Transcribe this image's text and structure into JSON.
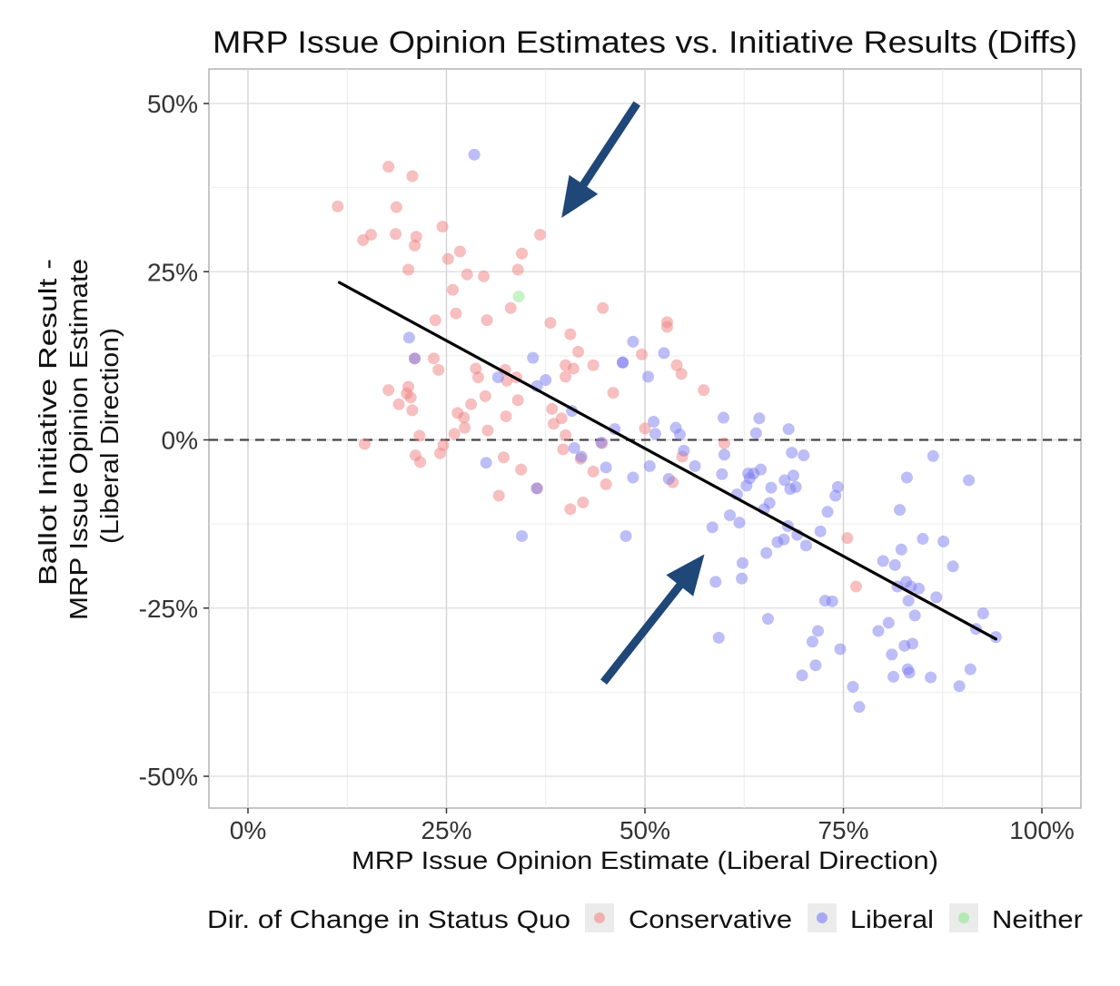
{
  "chart_data": {
    "type": "scatter",
    "title": "MRP Issue Opinion Estimates vs. Initiative Results (Diffs)",
    "xlabel": "MRP Issue Opinion Estimate (Liberal Direction)",
    "ylabel": [
      "Ballot Initiative Result -",
      "MRP Issue Opinion Estimate",
      "(Liberal Direction)"
    ],
    "xlim": [
      -0.09,
      1.1
    ],
    "ylim": [
      -0.55,
      0.55
    ],
    "x_ticks": [
      0,
      0.25,
      0.5,
      0.75,
      1.0
    ],
    "x_tick_labels": [
      "0%",
      "25%",
      "50%",
      "75%",
      "100%"
    ],
    "y_ticks": [
      0.5,
      0.25,
      0,
      -0.25,
      -0.5
    ],
    "y_tick_labels": [
      "50%",
      "25%",
      "0%",
      "-25%",
      "-50%"
    ],
    "grid": true,
    "reference_line": {
      "y": 0,
      "style": "dashed"
    },
    "trend_line": {
      "x": [
        0.115,
        0.942
      ],
      "y": [
        0.234,
        -0.296
      ]
    },
    "annotations": [
      {
        "type": "arrow",
        "from": [
          0.49,
          0.5
        ],
        "to": [
          0.395,
          0.33
        ],
        "color": "#1f4778"
      },
      {
        "type": "arrow",
        "from": [
          0.448,
          -0.36
        ],
        "to": [
          0.575,
          -0.17
        ],
        "color": "#1f4778"
      }
    ],
    "legend": {
      "title": "Dir. of Change in Status Quo",
      "position": "bottom",
      "entries": [
        {
          "name": "Conservative",
          "color": "#f8766d"
        },
        {
          "name": "Liberal",
          "color": "#6666ff"
        },
        {
          "name": "Neither",
          "color": "#7cea7c"
        }
      ]
    },
    "series": [
      {
        "name": "Conservative",
        "color": "#f08080",
        "points": [
          [
            0.113,
            0.347
          ],
          [
            0.177,
            0.406
          ],
          [
            0.207,
            0.392
          ],
          [
            0.187,
            0.346
          ],
          [
            0.145,
            0.297
          ],
          [
            0.155,
            0.305
          ],
          [
            0.186,
            0.306
          ],
          [
            0.212,
            0.302
          ],
          [
            0.21,
            0.289
          ],
          [
            0.245,
            0.317
          ],
          [
            0.202,
            0.253
          ],
          [
            0.252,
            0.269
          ],
          [
            0.267,
            0.28
          ],
          [
            0.258,
            0.223
          ],
          [
            0.276,
            0.246
          ],
          [
            0.297,
            0.243
          ],
          [
            0.34,
            0.253
          ],
          [
            0.345,
            0.277
          ],
          [
            0.368,
            0.305
          ],
          [
            0.331,
            0.196
          ],
          [
            0.236,
            0.178
          ],
          [
            0.262,
            0.188
          ],
          [
            0.301,
            0.178
          ],
          [
            0.381,
            0.174
          ],
          [
            0.406,
            0.157
          ],
          [
            0.447,
            0.196
          ],
          [
            0.528,
            0.175
          ],
          [
            0.528,
            0.168
          ],
          [
            0.234,
            0.121
          ],
          [
            0.24,
            0.104
          ],
          [
            0.287,
            0.106
          ],
          [
            0.29,
            0.093
          ],
          [
            0.324,
            0.104
          ],
          [
            0.338,
            0.093
          ],
          [
            0.416,
            0.131
          ],
          [
            0.4,
            0.111
          ],
          [
            0.41,
            0.106
          ],
          [
            0.435,
            0.111
          ],
          [
            0.496,
            0.127
          ],
          [
            0.54,
            0.111
          ],
          [
            0.546,
            0.098
          ],
          [
            0.4,
            0.094
          ],
          [
            0.177,
            0.074
          ],
          [
            0.202,
            0.079
          ],
          [
            0.2,
            0.069
          ],
          [
            0.205,
            0.063
          ],
          [
            0.19,
            0.053
          ],
          [
            0.207,
            0.044
          ],
          [
            0.281,
            0.053
          ],
          [
            0.299,
            0.065
          ],
          [
            0.326,
            0.088
          ],
          [
            0.34,
            0.059
          ],
          [
            0.325,
            0.035
          ],
          [
            0.264,
            0.04
          ],
          [
            0.272,
            0.033
          ],
          [
            0.273,
            0.018
          ],
          [
            0.26,
            0.009
          ],
          [
            0.302,
            0.014
          ],
          [
            0.383,
            0.046
          ],
          [
            0.395,
            0.032
          ],
          [
            0.385,
            0.024
          ],
          [
            0.46,
            0.07
          ],
          [
            0.574,
            0.074
          ],
          [
            0.147,
            -0.006
          ],
          [
            0.216,
            0.006
          ],
          [
            0.246,
            -0.008
          ],
          [
            0.242,
            -0.02
          ],
          [
            0.211,
            -0.023
          ],
          [
            0.217,
            -0.033
          ],
          [
            0.322,
            -0.026
          ],
          [
            0.344,
            -0.044
          ],
          [
            0.316,
            -0.083
          ],
          [
            0.4,
            0.007
          ],
          [
            0.397,
            -0.014
          ],
          [
            0.419,
            -0.028
          ],
          [
            0.435,
            -0.047
          ],
          [
            0.446,
            -0.005
          ],
          [
            0.451,
            -0.066
          ],
          [
            0.406,
            -0.103
          ],
          [
            0.422,
            -0.093
          ],
          [
            0.5,
            0.017
          ],
          [
            0.535,
            -0.063
          ],
          [
            0.547,
            -0.025
          ],
          [
            0.6,
            -0.005
          ],
          [
            0.755,
            -0.146
          ],
          [
            0.766,
            -0.218
          ],
          [
            0.364,
            -0.072
          ],
          [
            0.21,
            0.121
          ]
        ]
      },
      {
        "name": "Liberal",
        "color": "#7b7bf0",
        "points": [
          [
            0.285,
            0.424
          ],
          [
            0.203,
            0.152
          ],
          [
            0.21,
            0.121
          ],
          [
            0.315,
            0.093
          ],
          [
            0.359,
            0.122
          ],
          [
            0.375,
            0.089
          ],
          [
            0.364,
            0.08
          ],
          [
            0.3,
            -0.034
          ],
          [
            0.345,
            -0.143
          ],
          [
            0.364,
            -0.072
          ],
          [
            0.408,
            0.043
          ],
          [
            0.411,
            -0.012
          ],
          [
            0.42,
            -0.025
          ],
          [
            0.445,
            -0.004
          ],
          [
            0.451,
            -0.041
          ],
          [
            0.462,
            0.016
          ],
          [
            0.472,
            0.115
          ],
          [
            0.485,
            0.146
          ],
          [
            0.476,
            -0.143
          ],
          [
            0.485,
            -0.056
          ],
          [
            0.504,
            0.094
          ],
          [
            0.506,
            -0.039
          ],
          [
            0.511,
            0.027
          ],
          [
            0.513,
            0.009
          ],
          [
            0.524,
            0.129
          ],
          [
            0.53,
            -0.058
          ],
          [
            0.539,
            0.018
          ],
          [
            0.544,
            0.008
          ],
          [
            0.549,
            -0.016
          ],
          [
            0.563,
            -0.039
          ],
          [
            0.585,
            -0.13
          ],
          [
            0.589,
            -0.211
          ],
          [
            0.593,
            -0.294
          ],
          [
            0.599,
            0.033
          ],
          [
            0.6,
            -0.022
          ],
          [
            0.597,
            -0.051
          ],
          [
            0.607,
            -0.112
          ],
          [
            0.616,
            -0.081
          ],
          [
            0.619,
            -0.123
          ],
          [
            0.623,
            -0.183
          ],
          [
            0.622,
            -0.206
          ],
          [
            0.628,
            -0.068
          ],
          [
            0.63,
            -0.05
          ],
          [
            0.632,
            -0.057
          ],
          [
            0.637,
            -0.05
          ],
          [
            0.64,
            0.01
          ],
          [
            0.644,
            0.032
          ],
          [
            0.646,
            -0.044
          ],
          [
            0.65,
            -0.103
          ],
          [
            0.653,
            -0.168
          ],
          [
            0.655,
            -0.266
          ],
          [
            0.657,
            -0.094
          ],
          [
            0.659,
            -0.071
          ],
          [
            0.667,
            -0.152
          ],
          [
            0.675,
            -0.148
          ],
          [
            0.676,
            -0.06
          ],
          [
            0.68,
            -0.128
          ],
          [
            0.683,
            -0.073
          ],
          [
            0.685,
            -0.019
          ],
          [
            0.687,
            -0.053
          ],
          [
            0.69,
            -0.07
          ],
          [
            0.692,
            -0.141
          ],
          [
            0.698,
            -0.35
          ],
          [
            0.7,
            -0.023
          ],
          [
            0.703,
            -0.157
          ],
          [
            0.711,
            -0.3
          ],
          [
            0.715,
            -0.335
          ],
          [
            0.718,
            -0.284
          ],
          [
            0.721,
            -0.136
          ],
          [
            0.727,
            -0.239
          ],
          [
            0.73,
            -0.107
          ],
          [
            0.736,
            -0.24
          ],
          [
            0.74,
            -0.083
          ],
          [
            0.743,
            -0.07
          ],
          [
            0.746,
            -0.311
          ],
          [
            0.762,
            -0.367
          ],
          [
            0.77,
            -0.397
          ],
          [
            0.794,
            -0.284
          ],
          [
            0.8,
            -0.18
          ],
          [
            0.807,
            -0.272
          ],
          [
            0.811,
            -0.319
          ],
          [
            0.813,
            -0.352
          ],
          [
            0.815,
            -0.186
          ],
          [
            0.818,
            -0.218
          ],
          [
            0.821,
            -0.104
          ],
          [
            0.823,
            -0.163
          ],
          [
            0.827,
            -0.306
          ],
          [
            0.829,
            -0.211
          ],
          [
            0.831,
            -0.341
          ],
          [
            0.833,
            -0.346
          ],
          [
            0.832,
            -0.239
          ],
          [
            0.83,
            -0.056
          ],
          [
            0.835,
            -0.218
          ],
          [
            0.837,
            -0.303
          ],
          [
            0.84,
            -0.261
          ],
          [
            0.845,
            -0.221
          ],
          [
            0.85,
            -0.147
          ],
          [
            0.86,
            -0.353
          ],
          [
            0.863,
            -0.024
          ],
          [
            0.867,
            -0.234
          ],
          [
            0.876,
            -0.151
          ],
          [
            0.888,
            -0.188
          ],
          [
            0.896,
            -0.366
          ],
          [
            0.908,
            -0.06
          ],
          [
            0.91,
            -0.341
          ],
          [
            0.917,
            -0.281
          ],
          [
            0.926,
            -0.258
          ],
          [
            0.942,
            -0.293
          ],
          [
            0.681,
            0.016
          ],
          [
            0.472,
            0.115
          ]
        ]
      },
      {
        "name": "Neither",
        "color": "#8ee88e",
        "points": [
          [
            0.341,
            0.213
          ]
        ]
      }
    ]
  }
}
